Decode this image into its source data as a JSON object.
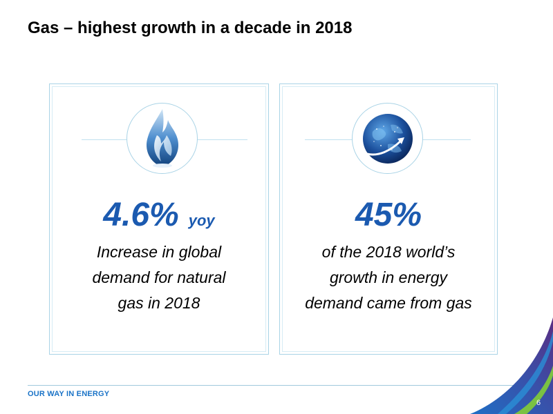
{
  "slide": {
    "title": "Gas – highest growth in a decade in 2018"
  },
  "cards": [
    {
      "icon": "gas-flame-icon",
      "value": "4.6%",
      "unit": "yoy",
      "description": "Increase in global demand for natural gas in 2018"
    },
    {
      "icon": "globe-icon",
      "value": "45%",
      "unit": "",
      "description": "of the 2018 world’s growth in energy demand came from gas"
    }
  ],
  "footer": {
    "tagline": "OUR WAY IN ENERGY",
    "page_number": "6"
  },
  "colors": {
    "accent": "#1b5ab0",
    "tagline": "#1a73c7",
    "border": "#a9d3e6",
    "swoosh_purple": "#5a2d82",
    "swoosh_blue": "#1f6fc5",
    "swoosh_green": "#7ac143"
  }
}
